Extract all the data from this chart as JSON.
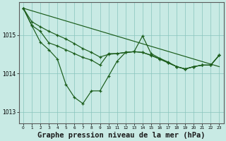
{
  "background_color": "#c8eae4",
  "plot_bg_color": "#c8eae4",
  "grid_color": "#88c4bc",
  "line_color": "#1a5c1a",
  "title": "Graphe pression niveau de la mer (hPa)",
  "title_fontsize": 7.5,
  "ylim": [
    1012.7,
    1015.85
  ],
  "xlim": [
    -0.5,
    23.5
  ],
  "yticks": [
    1013,
    1014,
    1015
  ],
  "xticks": [
    0,
    1,
    2,
    3,
    4,
    5,
    6,
    7,
    8,
    9,
    10,
    11,
    12,
    13,
    14,
    15,
    16,
    17,
    18,
    19,
    20,
    21,
    22,
    23
  ],
  "series1_x": [
    0,
    1,
    2,
    3,
    4,
    5,
    6,
    7,
    8,
    9,
    10,
    11,
    12,
    13,
    14,
    15,
    16,
    17,
    18,
    19,
    20,
    21,
    22,
    23
  ],
  "series1_y": [
    1015.7,
    1015.25,
    1015.1,
    1014.8,
    1014.72,
    1014.62,
    1014.52,
    1014.42,
    1014.35,
    1014.22,
    1014.52,
    1014.52,
    1014.55,
    1014.57,
    1014.55,
    1014.48,
    1014.38,
    1014.28,
    1014.18,
    1014.12,
    1014.18,
    1014.22,
    1014.22,
    1014.48
  ],
  "series2_x": [
    0,
    1,
    2,
    3,
    4,
    5,
    6,
    7,
    8,
    9,
    10,
    11,
    12,
    13,
    14,
    15,
    16,
    17,
    18,
    19,
    20,
    21,
    22,
    23
  ],
  "series2_y": [
    1015.7,
    1015.35,
    1015.22,
    1015.1,
    1015.0,
    1014.9,
    1014.78,
    1014.65,
    1014.55,
    1014.43,
    1014.5,
    1014.52,
    1014.55,
    1014.57,
    1014.55,
    1014.47,
    1014.38,
    1014.28,
    1014.18,
    1014.12,
    1014.18,
    1014.22,
    1014.22,
    1014.48
  ],
  "series3_x": [
    0,
    1,
    2,
    3,
    4,
    5,
    6,
    7,
    8,
    9,
    10,
    11,
    12,
    13,
    14,
    15,
    16,
    17,
    18,
    19,
    20,
    21,
    22,
    23
  ],
  "series3_y": [
    1015.7,
    1015.25,
    1014.82,
    1014.62,
    1014.38,
    1013.72,
    1013.38,
    1013.22,
    1013.55,
    1013.55,
    1013.93,
    1014.32,
    1014.55,
    1014.57,
    1014.98,
    1014.52,
    1014.4,
    1014.3,
    1014.18,
    1014.12,
    1014.18,
    1014.22,
    1014.22,
    1014.48
  ],
  "series4_x": [
    0,
    23
  ],
  "series4_y": [
    1015.7,
    1014.18
  ]
}
